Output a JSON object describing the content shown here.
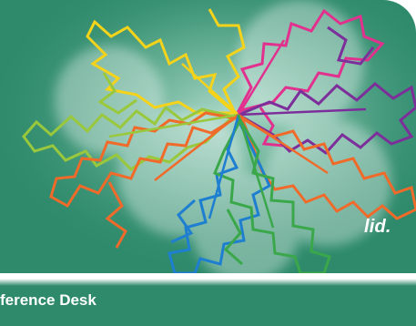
{
  "banner": {
    "tagline": "lid.",
    "background_color": "#2e8a6b",
    "art": {
      "subject": "overlapping snowflake outlines",
      "colors": [
        "#f5d31a",
        "#9ac83c",
        "#e2308f",
        "#7c2f9a",
        "#f06a2a",
        "#1e7fd0",
        "#3aa84a"
      ]
    }
  },
  "footer": {
    "label": "ference Desk"
  }
}
